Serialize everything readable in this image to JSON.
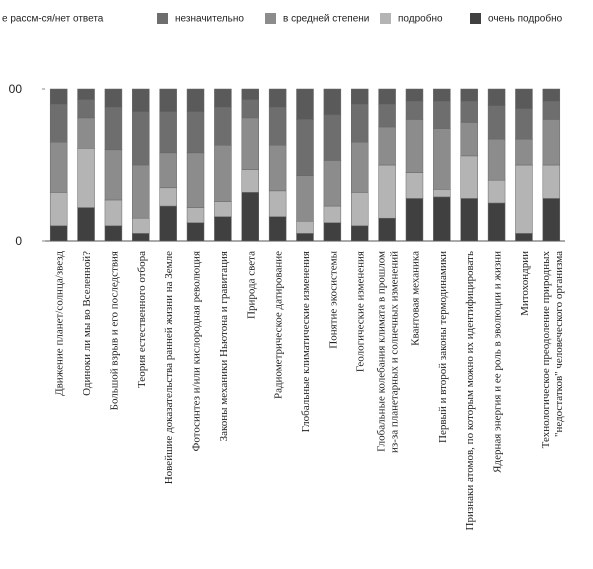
{
  "chart_data": {
    "type": "stacked_bar",
    "categories": [
      [
        "Движение планет/солнца/звезд"
      ],
      [
        "Одиноки ли мы во Вселенной?"
      ],
      [
        "Большой взрыв и его последствия"
      ],
      [
        "Теория естественного отбора"
      ],
      [
        "Новейшие доказательства ранней жизни на Земле"
      ],
      [
        "Фотосинтез и/или кислородная революция"
      ],
      [
        "Законы механики Ньютона и гравитация"
      ],
      [
        "Природа света"
      ],
      [
        "Радиометрическое датирование"
      ],
      [
        "Глобальные климатические изменения"
      ],
      [
        "Понятие экосистемы"
      ],
      [
        "Геологические изменения"
      ],
      [
        "Глобальные колебания климата в прошлом",
        "из-за планетарных и солнечных изменений"
      ],
      [
        "Квантовая механика"
      ],
      [
        "Первый и второй законы термодинамики"
      ],
      [
        "Признаки атомов, по которым можно их идентифицировать"
      ],
      [
        "Ядерная энергия и ее роль в эволюции и жизни"
      ],
      [
        "Митохондрии"
      ],
      [
        "Технологическое преодоление природных",
        "\"недостатков\" человеческого организма"
      ]
    ],
    "series": [
      {
        "name": "е рассм-ся/нет ответа",
        "color": "#5a5a5a",
        "values": [
          10,
          7,
          12,
          15,
          15,
          15,
          12,
          7,
          12,
          20,
          17,
          10,
          10,
          8,
          8,
          8,
          11,
          13,
          8
        ]
      },
      {
        "name": "незначительно",
        "color": "#6e6e6e",
        "values": [
          25,
          12,
          28,
          35,
          27,
          27,
          25,
          12,
          25,
          37,
          30,
          25,
          15,
          12,
          18,
          14,
          22,
          20,
          12
        ]
      },
      {
        "name": "в средней степени",
        "color": "#8c8c8c",
        "values": [
          33,
          20,
          33,
          35,
          23,
          36,
          37,
          34,
          30,
          30,
          30,
          33,
          25,
          35,
          40,
          22,
          27,
          17,
          30
        ]
      },
      {
        "name": "подробно",
        "color": "#b4b4b4",
        "values": [
          22,
          39,
          17,
          10,
          12,
          10,
          10,
          15,
          17,
          8,
          11,
          22,
          35,
          17,
          5,
          28,
          15,
          45,
          22
        ]
      },
      {
        "name": "очень подробно",
        "color": "#404040",
        "values": [
          10,
          22,
          10,
          5,
          23,
          12,
          16,
          32,
          16,
          5,
          12,
          10,
          15,
          28,
          29,
          28,
          25,
          5,
          28
        ]
      }
    ],
    "ylim": [
      0,
      100
    ],
    "yticks": [
      0,
      {
        "value": 100,
        "label": "00"
      }
    ]
  }
}
